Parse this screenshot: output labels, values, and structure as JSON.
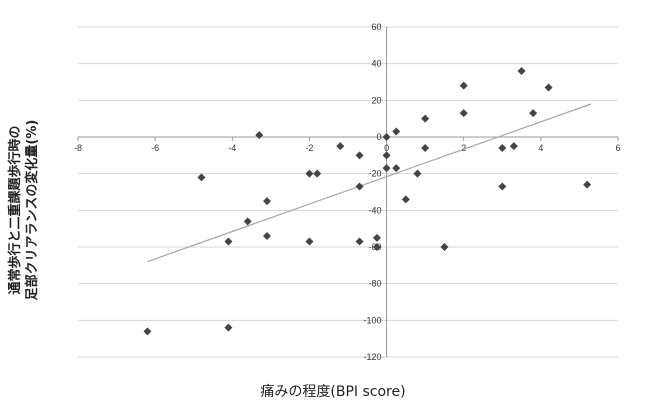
{
  "chart_data": {
    "type": "scatter",
    "xlabel": "痛みの程度(BPI score)",
    "ylabel_line1": "通常歩行と二重課題歩行時の",
    "ylabel_line2": "足部クリアランスの変化量(%)",
    "xlim": [
      -8,
      6
    ],
    "ylim": [
      -120,
      60
    ],
    "x_ticks": [
      -8,
      -6,
      -4,
      -2,
      0,
      2,
      4,
      6
    ],
    "y_ticks": [
      60,
      40,
      20,
      0,
      -20,
      -40,
      -60,
      -80,
      -100,
      -120
    ],
    "grid": "horizontal",
    "marker": "diamond",
    "marker_color": "#444444",
    "trendline_color": "#a6a6a6",
    "trendline": {
      "x": [
        -6.2,
        5.3
      ],
      "y": [
        -68,
        18
      ]
    },
    "points": [
      {
        "x": -6.2,
        "y": -106
      },
      {
        "x": -4.1,
        "y": -104
      },
      {
        "x": -4.1,
        "y": -57
      },
      {
        "x": -4.8,
        "y": -22
      },
      {
        "x": -3.3,
        "y": 1
      },
      {
        "x": -3.6,
        "y": -46
      },
      {
        "x": -3.1,
        "y": -35
      },
      {
        "x": -3.1,
        "y": -54
      },
      {
        "x": -2.0,
        "y": -57
      },
      {
        "x": -2.0,
        "y": -20
      },
      {
        "x": -1.8,
        "y": -20
      },
      {
        "x": -1.2,
        "y": -5
      },
      {
        "x": -0.7,
        "y": -10
      },
      {
        "x": -0.7,
        "y": -27
      },
      {
        "x": -0.7,
        "y": -57
      },
      {
        "x": -0.25,
        "y": -55
      },
      {
        "x": -0.25,
        "y": -60
      },
      {
        "x": 0.0,
        "y": 0
      },
      {
        "x": 0.0,
        "y": -10
      },
      {
        "x": 0.0,
        "y": -17
      },
      {
        "x": 0.25,
        "y": 3
      },
      {
        "x": 0.25,
        "y": -17
      },
      {
        "x": 0.5,
        "y": -34
      },
      {
        "x": 0.8,
        "y": -20
      },
      {
        "x": 1.0,
        "y": 10
      },
      {
        "x": 1.0,
        "y": -6
      },
      {
        "x": 1.5,
        "y": -60
      },
      {
        "x": 2.0,
        "y": 28
      },
      {
        "x": 2.0,
        "y": 13
      },
      {
        "x": 3.0,
        "y": -6
      },
      {
        "x": 3.0,
        "y": -27
      },
      {
        "x": 3.3,
        "y": -5
      },
      {
        "x": 3.5,
        "y": 36
      },
      {
        "x": 3.8,
        "y": 13
      },
      {
        "x": 4.2,
        "y": 27
      },
      {
        "x": 5.2,
        "y": -26
      }
    ]
  }
}
